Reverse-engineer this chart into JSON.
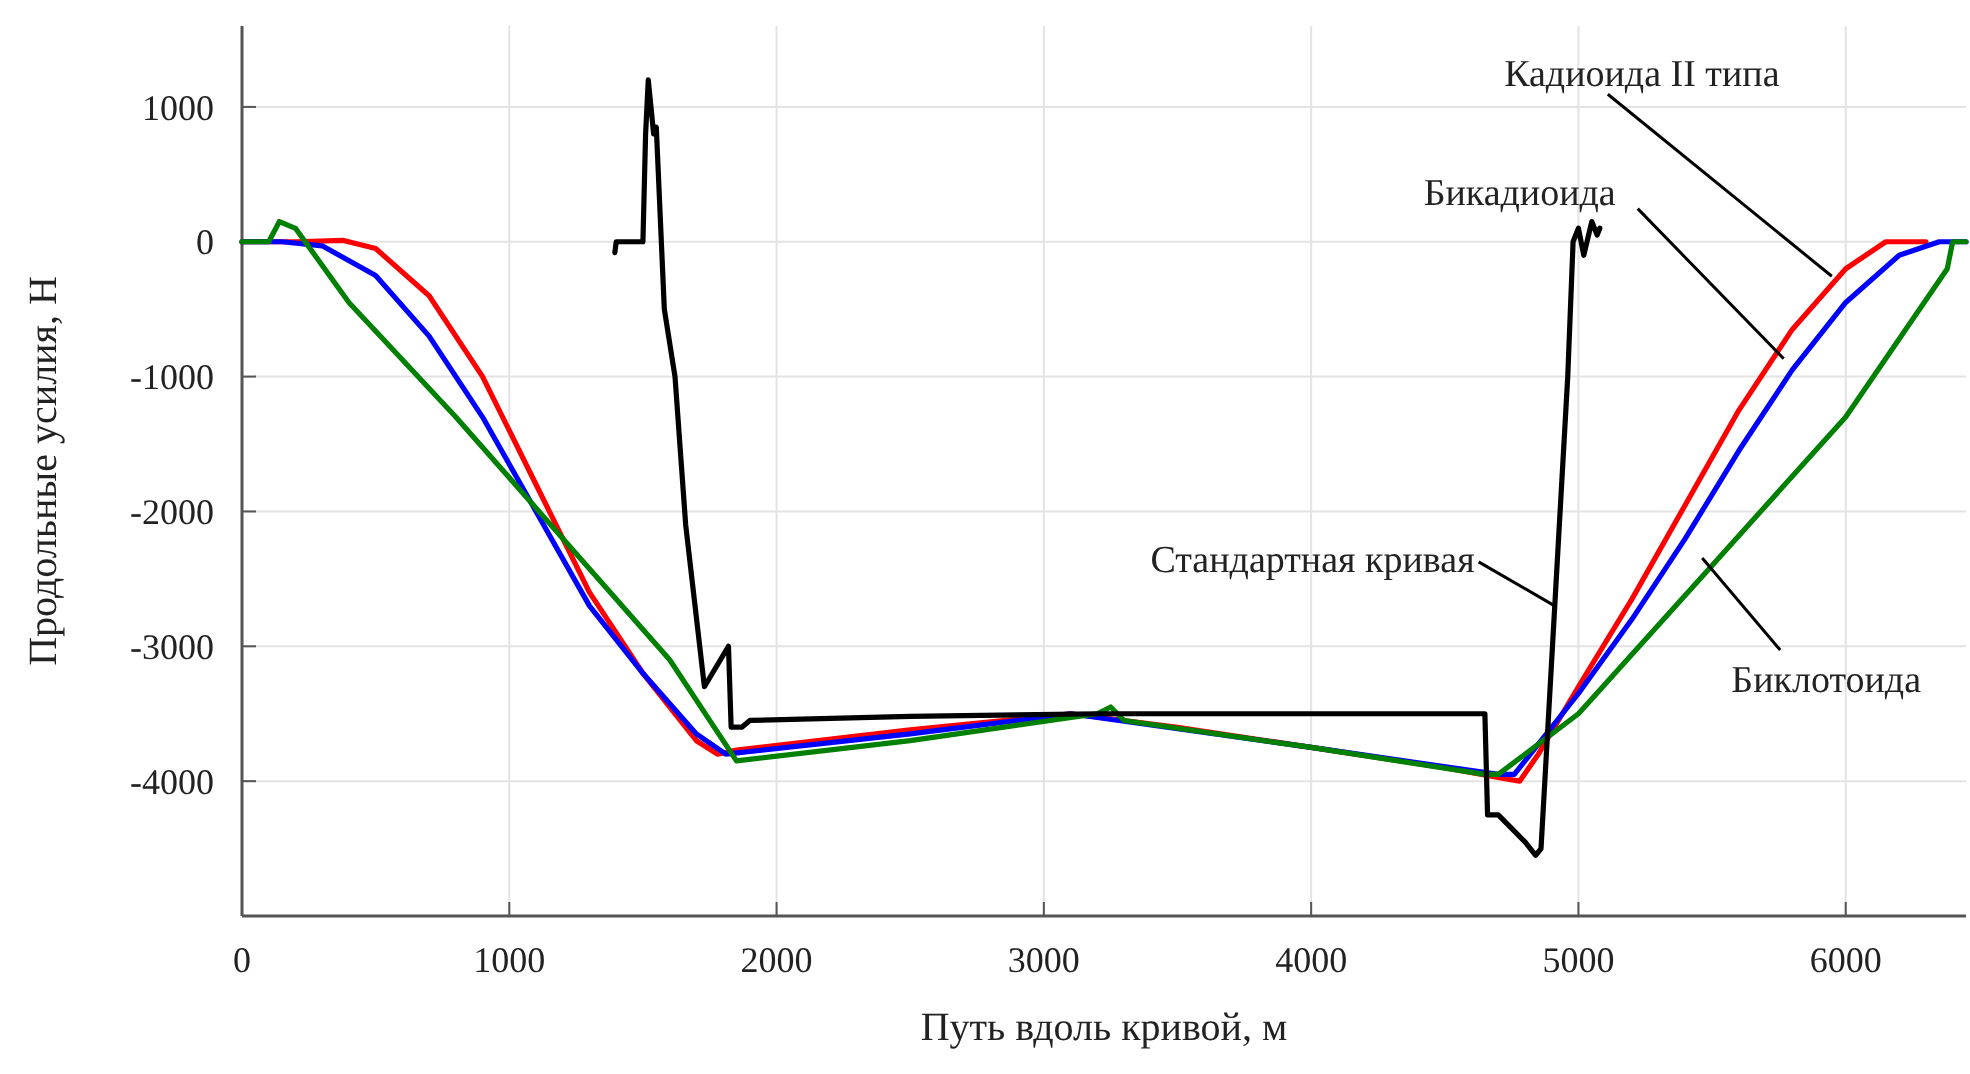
{
  "chart_data": {
    "type": "line",
    "xlabel": "Путь вдоль кривой, м",
    "ylabel": "Продольные усилия, Н",
    "xlim": [
      0,
      6450
    ],
    "ylim": [
      -5000,
      1600
    ],
    "xticks": [
      0,
      1000,
      2000,
      3000,
      4000,
      5000,
      6000
    ],
    "yticks": [
      -4000,
      -3000,
      -2000,
      -1000,
      0,
      1000
    ],
    "grid": true,
    "marker": "none",
    "line_style": "solid",
    "series": [
      {
        "color": "#ff0000",
        "x": [
          0,
          200,
          380,
          500,
          700,
          900,
          1100,
          1300,
          1500,
          1700,
          1780,
          1850,
          2500,
          3100,
          3500,
          4000,
          4500,
          4720,
          4780,
          4850,
          5000,
          5200,
          5400,
          5600,
          5800,
          6000,
          6150,
          6300
        ],
        "values": [
          0,
          0,
          10,
          -50,
          -400,
          -1000,
          -1800,
          -2600,
          -3200,
          -3700,
          -3800,
          -3770,
          -3620,
          -3500,
          -3600,
          -3750,
          -3900,
          -3980,
          -4000,
          -3800,
          -3300,
          -2650,
          -1950,
          -1250,
          -650,
          -200,
          0,
          0
        ]
      },
      {
        "color": "#0000ff",
        "x": [
          0,
          150,
          300,
          500,
          700,
          900,
          1100,
          1300,
          1500,
          1700,
          1810,
          2500,
          3100,
          4000,
          4700,
          4760,
          5000,
          5200,
          5400,
          5600,
          5800,
          6000,
          6200,
          6350,
          6450
        ],
        "values": [
          0,
          0,
          -30,
          -250,
          -700,
          -1300,
          -2000,
          -2700,
          -3200,
          -3650,
          -3800,
          -3650,
          -3500,
          -3750,
          -3950,
          -3950,
          -3350,
          -2800,
          -2200,
          -1550,
          -950,
          -450,
          -100,
          0,
          0
        ]
      },
      {
        "color": "#008000",
        "x": [
          0,
          100,
          140,
          200,
          400,
          800,
          1200,
          1600,
          1850,
          2500,
          3200,
          3250,
          3300,
          4000,
          4650,
          4700,
          5000,
          5500,
          6000,
          6380,
          6400,
          6450
        ],
        "values": [
          0,
          0,
          150,
          100,
          -450,
          -1300,
          -2200,
          -3100,
          -3850,
          -3700,
          -3500,
          -3450,
          -3550,
          -3750,
          -3950,
          -3950,
          -3500,
          -2400,
          -1300,
          -200,
          0,
          0
        ]
      },
      {
        "color": "#000000",
        "x": [
          1395,
          1400,
          1500,
          1510,
          1520,
          1540,
          1550,
          1580,
          1620,
          1660,
          1730,
          1760,
          1820,
          1830,
          1870,
          1900,
          2500,
          3200,
          4650,
          4660,
          4700,
          4750,
          4800,
          4840,
          4860,
          4960,
          4980,
          5000,
          5020,
          5050,
          5070,
          5080
        ],
        "values": [
          -80,
          0,
          0,
          800,
          1200,
          800,
          850,
          -500,
          -1000,
          -2100,
          -3300,
          -3200,
          -3000,
          -3600,
          -3600,
          -3550,
          -3520,
          -3500,
          -3500,
          -4250,
          -4250,
          -4350,
          -4450,
          -4550,
          -4500,
          -1000,
          0,
          100,
          -100,
          150,
          50,
          100
        ]
      }
    ],
    "annotations": [
      {
        "text": "Кадиоида II типа",
        "x": 5948,
        "y": -256
      },
      {
        "text": "Бикадиоида",
        "x": 5768,
        "y": -867
      },
      {
        "text": "Стандартная кривая",
        "x": 4911,
        "y": -2700
      },
      {
        "text": "Биклотоида",
        "x": 5463,
        "y": -2345
      }
    ]
  }
}
